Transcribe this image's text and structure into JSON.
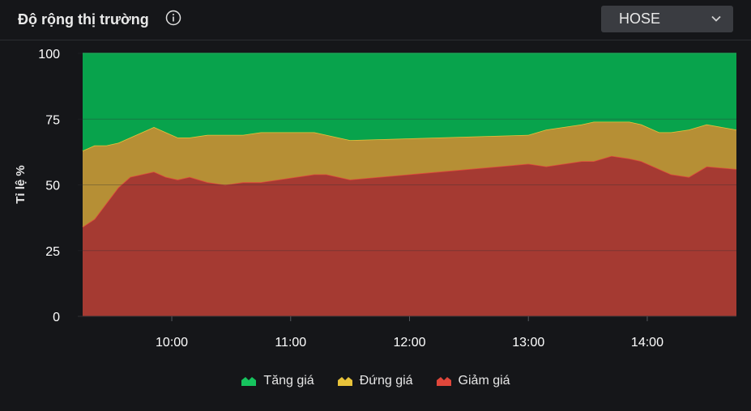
{
  "header": {
    "title": "Độ rộng thị trường",
    "info_icon": "info-circle-icon",
    "exchange_select": {
      "value": "HOSE",
      "icon": "chevron-down-icon"
    }
  },
  "chart_data": {
    "type": "area",
    "stacked": true,
    "ylabel": "Tỉ lệ %",
    "ylim": [
      0,
      100
    ],
    "yticks": [
      "0",
      "25",
      "50",
      "75",
      "100"
    ],
    "x_tick_labels": [
      "10:00",
      "11:00",
      "12:00",
      "13:00",
      "14:00"
    ],
    "x_tick_values": [
      10.0,
      11.0,
      12.0,
      13.0,
      14.0
    ],
    "xlim": [
      9.25,
      14.75
    ],
    "legend_position": "bottom",
    "x": [
      9.25,
      9.35,
      9.45,
      9.55,
      9.65,
      9.75,
      9.85,
      9.95,
      10.05,
      10.15,
      10.3,
      10.45,
      10.6,
      10.75,
      10.9,
      11.05,
      11.2,
      11.3,
      11.4,
      11.5,
      13.0,
      13.15,
      13.3,
      13.45,
      13.55,
      13.7,
      13.85,
      13.95,
      14.1,
      14.2,
      14.35,
      14.5,
      14.75
    ],
    "series": [
      {
        "name": "Giảm giá",
        "color": "#a53a32",
        "line_color": "#e0473b",
        "values": [
          34,
          37,
          43,
          49,
          53,
          54,
          55,
          53,
          52,
          53,
          51,
          50,
          51,
          51,
          52,
          53,
          54,
          54,
          53,
          52,
          58,
          57,
          58,
          59,
          59,
          61,
          60,
          59,
          56,
          54,
          53,
          57,
          56
        ]
      },
      {
        "name": "Đứng giá",
        "color": "#b68f35",
        "line_color": "#e8c33a",
        "values": [
          29,
          28,
          22,
          17,
          15,
          16,
          17,
          17,
          16,
          15,
          18,
          19,
          18,
          19,
          18,
          17,
          16,
          15,
          15,
          15,
          11,
          14,
          14,
          14,
          15,
          13,
          14,
          14,
          14,
          16,
          18,
          16,
          15
        ]
      },
      {
        "name": "Tăng giá",
        "color": "#08a34c",
        "line_color": "#16c45e",
        "values": [
          37,
          35,
          35,
          34,
          32,
          30,
          28,
          30,
          32,
          32,
          31,
          31,
          31,
          30,
          30,
          30,
          30,
          31,
          32,
          33,
          31,
          29,
          28,
          27,
          26,
          26,
          26,
          27,
          30,
          30,
          29,
          27,
          29
        ]
      }
    ]
  },
  "legend": {
    "items": [
      {
        "label": "Tăng giá",
        "color": "#16c45e"
      },
      {
        "label": "Đứng giá",
        "color": "#e8c33a"
      },
      {
        "label": "Giảm giá",
        "color": "#e0473b"
      }
    ]
  }
}
